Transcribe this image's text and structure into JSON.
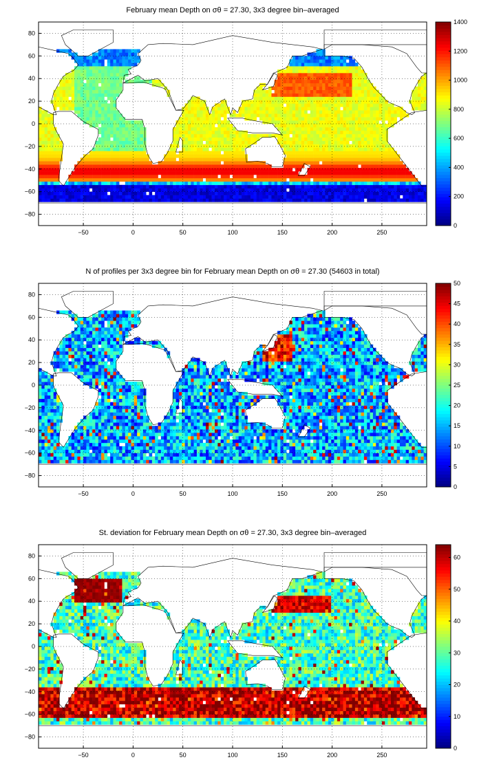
{
  "chart_data": [
    {
      "type": "heatmap",
      "title": "February mean Depth on σθ = 27.30, 3x3 degree bin–averaged",
      "x_ticks": [
        -50,
        0,
        50,
        100,
        150,
        200,
        250
      ],
      "y_ticks": [
        80,
        60,
        40,
        20,
        0,
        -20,
        -40,
        -60,
        -80
      ],
      "xlim": [
        -95,
        295
      ],
      "ylim": [
        -90,
        90
      ],
      "colorbar": {
        "range": [
          0,
          1400
        ],
        "ticks": [
          0,
          200,
          400,
          600,
          800,
          1000,
          1200,
          1400
        ]
      },
      "pattern": "depth",
      "colormap": "jet"
    },
    {
      "type": "heatmap",
      "title": "N of profiles per 3x3 degree bin for February mean Depth on σθ = 27.30 (54603 in total)",
      "x_ticks": [
        -50,
        0,
        50,
        100,
        150,
        200,
        250
      ],
      "y_ticks": [
        80,
        60,
        40,
        20,
        0,
        -20,
        -40,
        -60,
        -80
      ],
      "xlim": [
        -95,
        295
      ],
      "ylim": [
        -90,
        90
      ],
      "colorbar": {
        "range": [
          0,
          50
        ],
        "ticks": [
          0,
          5,
          10,
          15,
          20,
          25,
          30,
          35,
          40,
          45,
          50
        ]
      },
      "pattern": "count",
      "colormap": "jet"
    },
    {
      "type": "heatmap",
      "title": "St. deviation for February mean Depth on σθ = 27.30, 3x3 degree bin–averaged",
      "x_ticks": [
        -50,
        0,
        50,
        100,
        150,
        200,
        250
      ],
      "y_ticks": [
        80,
        60,
        40,
        20,
        0,
        -20,
        -40,
        -60,
        -80
      ],
      "xlim": [
        -95,
        295
      ],
      "ylim": [
        -90,
        90
      ],
      "colorbar": {
        "range": [
          0,
          64
        ],
        "ticks": [
          0,
          10,
          20,
          30,
          40,
          50,
          60
        ]
      },
      "pattern": "stdev",
      "colormap": "jet"
    }
  ]
}
